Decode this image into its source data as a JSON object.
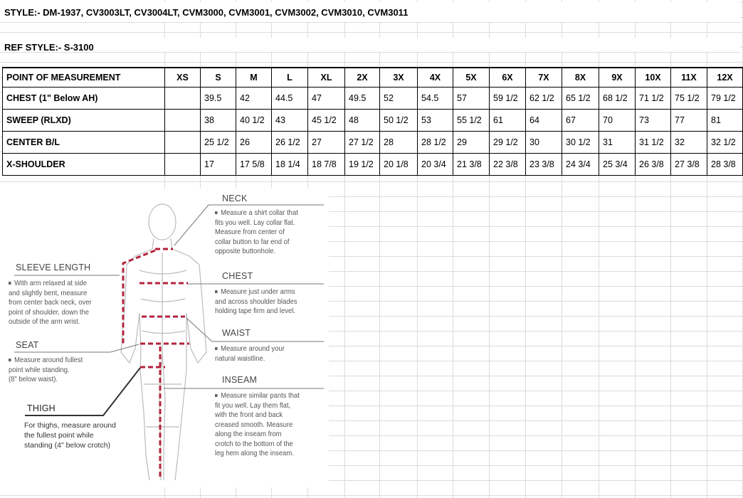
{
  "header": {
    "style_line": "STYLE:- DM-1937, CV3003LT, CV3004LT, CVM3000, CVM3001, CVM3002, CVM3010, CVM3011",
    "ref_style_line": "REF STYLE:- S-3100"
  },
  "table": {
    "columns": [
      "POINT OF MEASUREMENT",
      "XS",
      "S",
      "M",
      "L",
      "XL",
      "2X",
      "3X",
      "4X",
      "5X",
      "6X",
      "7X",
      "8X",
      "9X",
      "10X",
      "11X",
      "12X"
    ],
    "rows": [
      [
        "CHEST (1\" Below AH)",
        "",
        "39.5",
        "42",
        "44.5",
        "47",
        "49.5",
        "52",
        "54.5",
        "57",
        "59 1/2",
        "62 1/2",
        "65 1/2",
        "68 1/2",
        "71 1/2",
        "75 1/2",
        "79 1/2"
      ],
      [
        "SWEEP (RLXD)",
        "",
        "38",
        "40 1/2",
        "43",
        "45 1/2",
        "48",
        "50 1/2",
        "53",
        "55 1/2",
        "61",
        "64",
        "67",
        "70",
        "73",
        "77",
        "81"
      ],
      [
        "CENTER B/L",
        "",
        "25 1/2",
        "26",
        "26 1/2",
        "27",
        "27 1/2",
        "28",
        "28 1/2",
        "29",
        "29 1/2",
        "30",
        "30 1/2",
        "31",
        "31 1/2",
        "32",
        "32 1/2"
      ],
      [
        "X-SHOULDER",
        "",
        "17",
        "17 5/8",
        "18 1/4",
        "18 7/8",
        "19 1/2",
        "20 1/8",
        "20 3/4",
        "21 3/8",
        "22 3/8",
        "23 3/8",
        "24 3/4",
        "25 3/4",
        "26 3/8",
        "27 3/8",
        "28 3/8"
      ]
    ]
  },
  "diagram": {
    "neck": {
      "title": "NECK",
      "text": "Measure a shirt collar that\nfits you well. Lay collar flat.\nMeasure from center of\ncollar button to far end of\nopposite buttonhole."
    },
    "chest": {
      "title": "CHEST",
      "text": "Measure just under arms\nand across shoulder blades\nholding tape firm and level."
    },
    "waist": {
      "title": "WAIST",
      "text": "Measure around your\nnatural waistline."
    },
    "inseam": {
      "title": "INSEAM",
      "text": "Measure similar pants that\nfit you well. Lay them flat,\nwith the front and back\ncreased smooth. Measure\nalong the inseam from\ncrotch to the bottom of the\nleg hem along the inseam."
    },
    "sleeve": {
      "title": "SLEEVE LENGTH",
      "text": "With arm relaxed at side\nand slightly bent, measure\nfrom center back neck, over\npoint of shoulder, down the\noutside of the arm wrist."
    },
    "seat": {
      "title": "SEAT",
      "text": "Measure around fullest\npoint while standing.\n(8\" below waist)."
    },
    "thigh": {
      "title": "THIGH",
      "text": "For thighs, measure around\nthe fullest point while\nstanding (4\" below crotch)"
    },
    "measure_color": "#b5213b"
  }
}
